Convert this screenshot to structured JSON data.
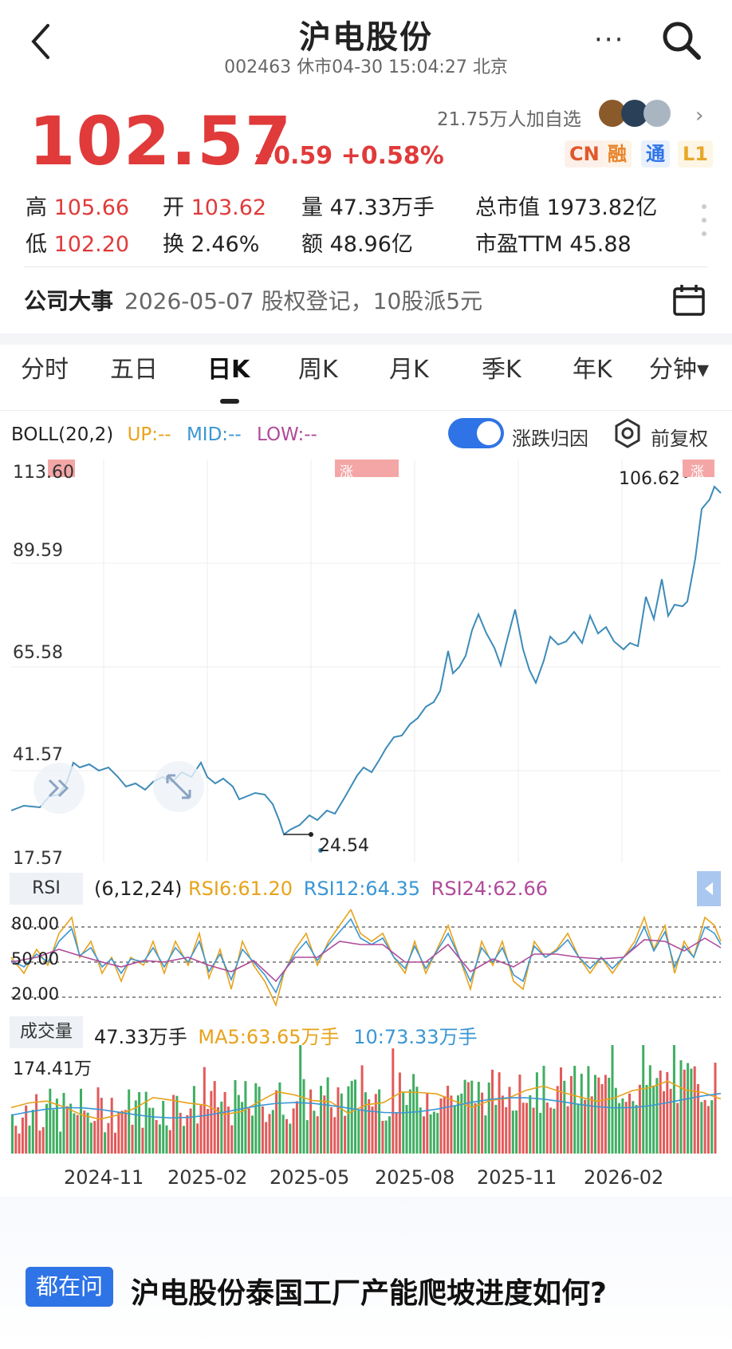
{
  "header": {
    "title": "沪电股份",
    "subtitle": "002463 休市04-30 15:04:27 北京",
    "more": "···"
  },
  "quote": {
    "price": "102.57",
    "change": "+0.59 +0.58%",
    "followers": "21.75万人加自选",
    "badges": [
      "CN",
      "融",
      "通",
      "L1"
    ]
  },
  "stats": {
    "high_label": "高",
    "high": "105.66",
    "open_label": "开",
    "open": "103.62",
    "vol_label": "量",
    "vol": "47.33万手",
    "cap_label": "总市值",
    "cap": "1973.82亿",
    "low_label": "低",
    "low": "102.20",
    "turn_label": "换",
    "turn": "2.46%",
    "amt_label": "额",
    "amt": "48.96亿",
    "pe_label": "市盈TTM",
    "pe": "45.88"
  },
  "event": {
    "label": "公司大事",
    "text": "2026-05-07 股权登记，10股派5元"
  },
  "tabs": [
    "分时",
    "五日",
    "日K",
    "周K",
    "月K",
    "季K",
    "年K",
    "分钟▾"
  ],
  "indicator": {
    "boll": "BOLL(20,2)",
    "up": "UP:--",
    "mid": "MID:--",
    "low": "LOW:--",
    "toggle_label": "涨跌归因",
    "fq_label": "前复权"
  },
  "price_axis": [
    "113.60",
    "89.59",
    "65.58",
    "41.57",
    "17.57"
  ],
  "price_marks": {
    "high_value": "106.62",
    "low_value": "24.54",
    "rise_tag": "涨"
  },
  "rsi": {
    "label": "RSI",
    "params": "(6,12,24)",
    "rsi6": "RSI6:61.20",
    "rsi12": "RSI12:64.35",
    "rsi24": "RSI24:62.66",
    "levels": [
      "80.00",
      "50.00",
      "20.00"
    ]
  },
  "volume": {
    "label": "成交量",
    "value": "47.33万手",
    "ma5": "MA5:63.65万手",
    "ma10": "10:73.33万手",
    "max": "174.41万"
  },
  "x_dates": [
    "2024-11",
    "2025-02",
    "2025-05",
    "2025-08",
    "2025-11",
    "2026-02"
  ],
  "bottom": {
    "tag": "都在问",
    "question": "沪电股份泰国工厂产能爬坡进度如何?"
  },
  "chart_data": {
    "type": "line",
    "title": "",
    "xlabel": "",
    "ylabel": "",
    "ylim": [
      17.57,
      113.6
    ],
    "categories": [
      "2024-11",
      "2025-02",
      "2025-05",
      "2025-08",
      "2025-11",
      "2026-02"
    ],
    "series": [
      {
        "name": "",
        "values": [
          40,
          38,
          24.54,
          52,
          72,
          74
        ]
      }
    ],
    "annotations": [
      "106.62",
      "24.54"
    ]
  }
}
